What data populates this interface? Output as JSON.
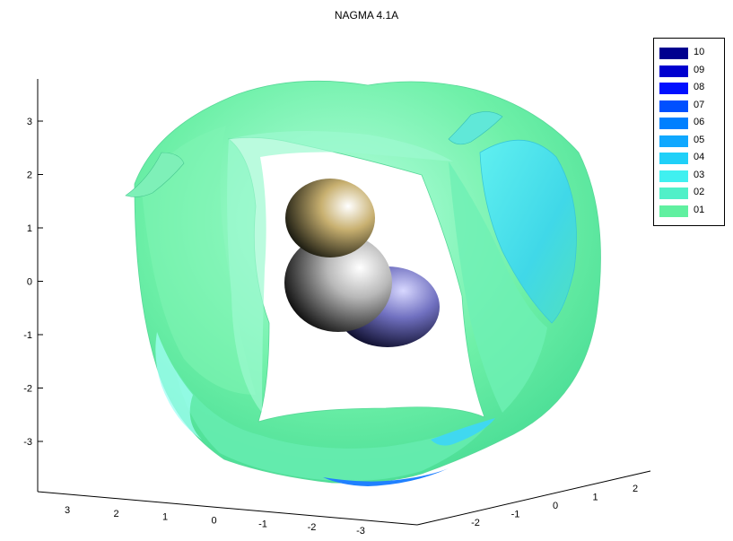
{
  "chart_data": {
    "type": "3d-surface",
    "title": "NAGMA 4.1A",
    "z_ticks": [
      "3",
      "2",
      "1",
      "0",
      "-1",
      "-2",
      "-3"
    ],
    "x_ticks": [
      "3",
      "2",
      "1",
      "0",
      "-1",
      "-2",
      "-3"
    ],
    "y_ticks": [
      "-2",
      "-1",
      "0",
      "1",
      "2"
    ],
    "legend": {
      "placement": "top-right",
      "entries": [
        {
          "label": "10",
          "color": "#00008f"
        },
        {
          "label": "09",
          "color": "#0000cf"
        },
        {
          "label": "08",
          "color": "#0010ff"
        },
        {
          "label": "07",
          "color": "#0050ff"
        },
        {
          "label": "06",
          "color": "#0080ff"
        },
        {
          "label": "05",
          "color": "#10a8ff"
        },
        {
          "label": "04",
          "color": "#20d0f8"
        },
        {
          "label": "03",
          "color": "#40f0f0"
        },
        {
          "label": "02",
          "color": "#50f0c8"
        },
        {
          "label": "01",
          "color": "#60f0a0"
        }
      ]
    },
    "surface_color": "#6ef0a8",
    "spheres": [
      {
        "color": "#c8b070"
      },
      {
        "color": "#b8b8b8"
      },
      {
        "color": "#7070c0"
      }
    ],
    "grid": false
  }
}
